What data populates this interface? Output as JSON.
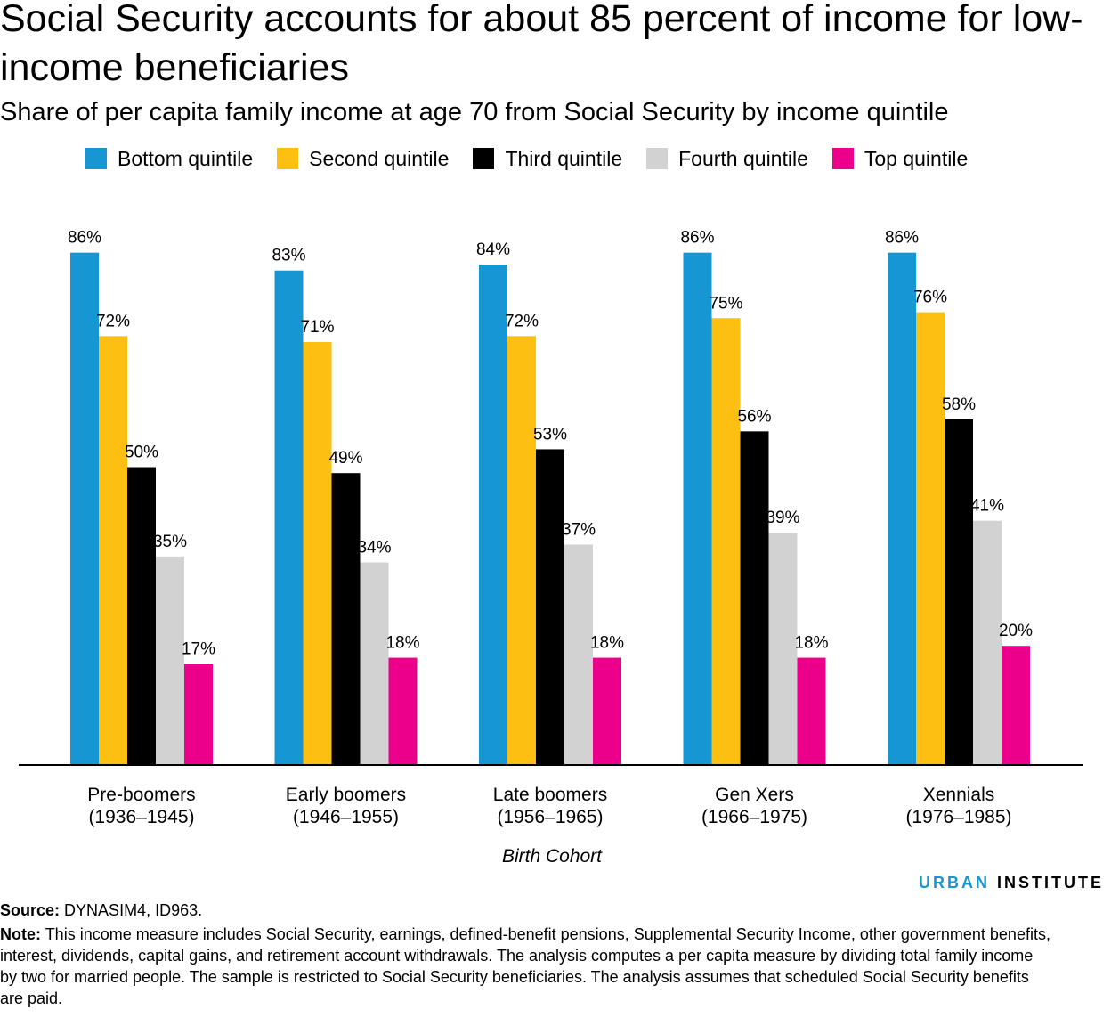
{
  "title": "Social Security accounts for about 85 percent of income for low-income beneficiaries",
  "subtitle": "Share of per capita family income at age 70 from Social Security by income quintile",
  "source_label": "Source:",
  "source_text": "DYNASIM4, ID963.",
  "note_label": "Note:",
  "note_text": "This income measure includes Social Security, earnings, defined-benefit pensions, Supplemental Security Income, other government benefits, interest, dividends, capital gains, and retirement account withdrawals. The analysis computes a per capita measure by dividing total family income by two for married people. The sample is restricted to Social Security beneficiaries. The analysis assumes that scheduled Social Security benefits are paid.",
  "brand": {
    "part1": "URBAN",
    "part2": "INSTITUTE",
    "color_primary": "#1696d2"
  },
  "chart_data": {
    "type": "bar",
    "title": "Social Security accounts for about 85 percent of income for low-income beneficiaries",
    "subtitle": "Share of per capita family income at age 70 from Social Security by income quintile",
    "xlabel": "Birth Cohort",
    "ylabel": "",
    "ylim": [
      0,
      100
    ],
    "grid": false,
    "legend": "top",
    "categories": [
      {
        "line1": "Pre-boomers",
        "line2": "(1936–1945)"
      },
      {
        "line1": "Early boomers",
        "line2": "(1946–1955)"
      },
      {
        "line1": "Late boomers",
        "line2": "(1956–1965)"
      },
      {
        "line1": "Gen Xers",
        "line2": "(1966–1975)"
      },
      {
        "line1": "Xennials",
        "line2": "(1976–1985)"
      }
    ],
    "series": [
      {
        "name": "Bottom quintile",
        "color": "#1696d2",
        "values": [
          86,
          83,
          84,
          86,
          86
        ]
      },
      {
        "name": "Second quintile",
        "color": "#fdbf11",
        "values": [
          72,
          71,
          72,
          75,
          76
        ]
      },
      {
        "name": "Third quintile",
        "color": "#000000",
        "values": [
          50,
          49,
          53,
          56,
          58
        ]
      },
      {
        "name": "Fourth quintile",
        "color": "#d2d2d2",
        "values": [
          35,
          34,
          37,
          39,
          41
        ]
      },
      {
        "name": "Top quintile",
        "color": "#ec008b",
        "values": [
          17,
          18,
          18,
          18,
          20
        ]
      }
    ]
  }
}
